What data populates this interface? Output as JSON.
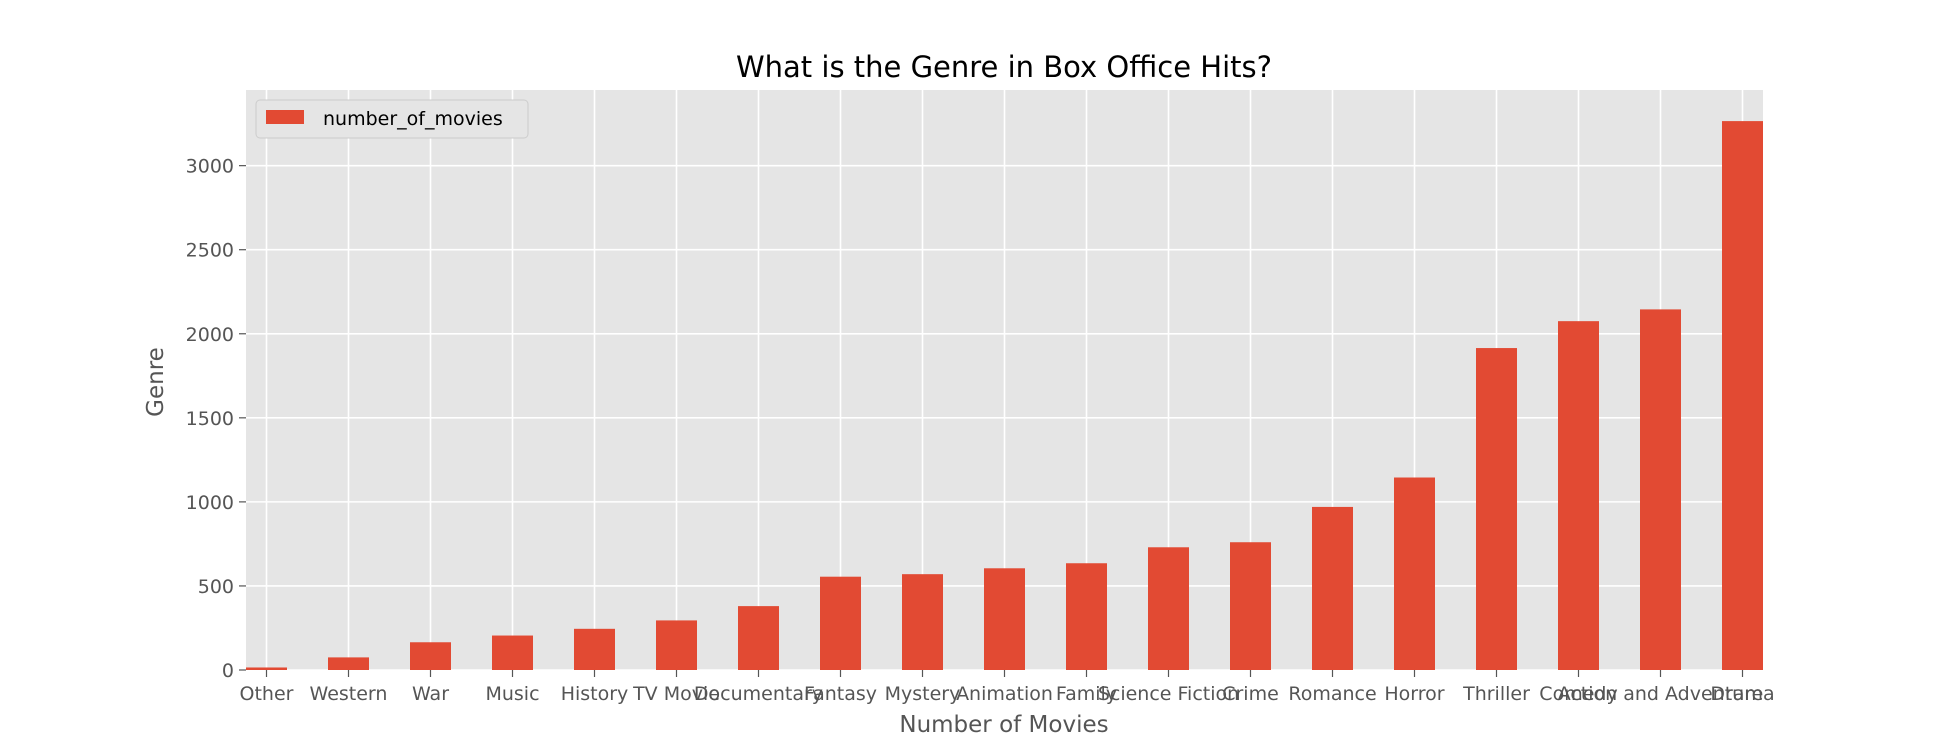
{
  "colors": {
    "plot_background": "#e5e5e5",
    "grid": "#ffffff",
    "bar": "#e24a33",
    "legend_background": "#e5e5e5",
    "legend_border": "#cccccc"
  },
  "chart_data": {
    "type": "bar",
    "title": "What is the Genre in Box Office Hits?",
    "xlabel": "Number of Movies",
    "ylabel": "Genre",
    "categories": [
      "Other",
      "Western",
      "War",
      "Music",
      "History",
      "TV Movie",
      "Documentary",
      "Fantasy",
      "Mystery",
      "Animation",
      "Family",
      "Science Fiction",
      "Crime",
      "Romance",
      "Horror",
      "Thriller",
      "Comedy",
      "Action and Adventure",
      "Drama"
    ],
    "series": [
      {
        "name": "number_of_movies",
        "values": [
          15,
          75,
          165,
          205,
          245,
          295,
          380,
          555,
          570,
          605,
          635,
          730,
          760,
          970,
          1145,
          1915,
          2075,
          2145,
          3265
        ]
      }
    ],
    "ylim": [
      0,
      3450
    ],
    "yticks": [
      0,
      500,
      1000,
      1500,
      2000,
      2500,
      3000
    ],
    "grid": true,
    "legend": "upper left"
  }
}
